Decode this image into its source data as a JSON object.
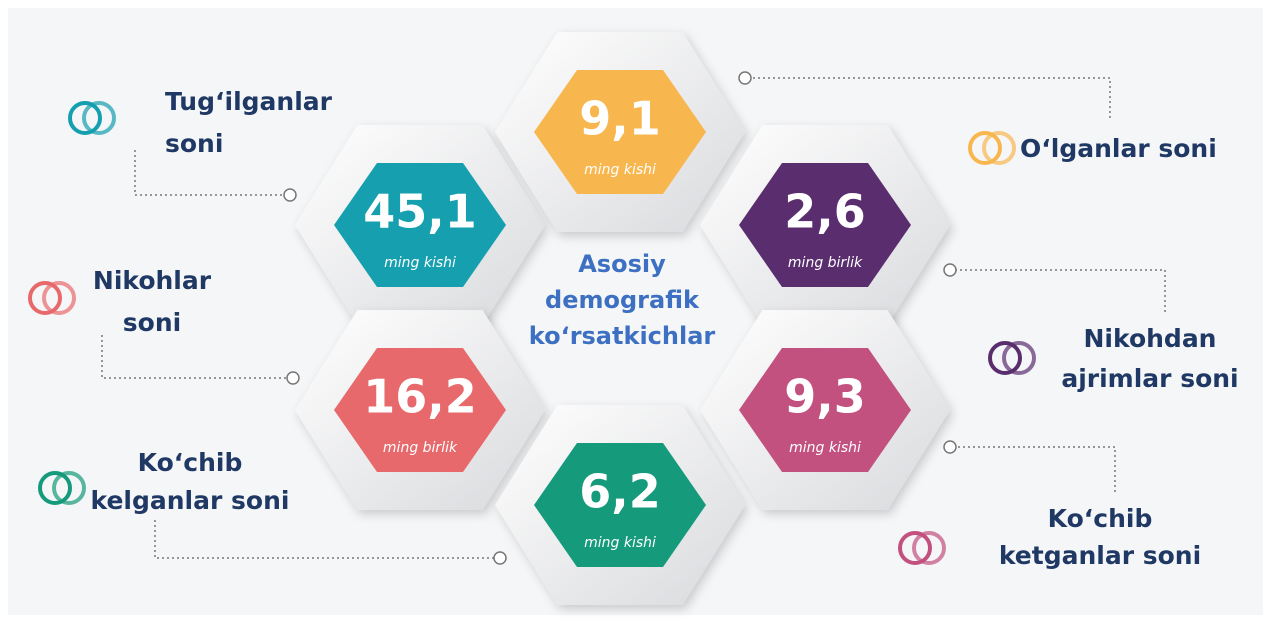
{
  "title": [
    "Asosiy",
    "demografik",
    "ko‘rsatkichlar"
  ],
  "items": [
    {
      "label": [
        "Tug‘ilganlar",
        "soni"
      ],
      "value": "45,1",
      "unit": "ming kishi",
      "color": "#169fae"
    },
    {
      "label": [
        "O‘lganlar soni"
      ],
      "value": "9,1",
      "unit": "ming kishi",
      "color": "#f8b64e"
    },
    {
      "label": [
        "Nikohlar",
        "soni"
      ],
      "value": "16,2",
      "unit": "ming birlik",
      "color": "#e8696c"
    },
    {
      "label": [
        "Nikohdan",
        "ajrimlar soni"
      ],
      "value": "2,6",
      "unit": "ming birlik",
      "color": "#5a2e6e"
    },
    {
      "label": [
        "Ko‘chib",
        "kelganlar soni"
      ],
      "value": "6,2",
      "unit": "ming kishi",
      "color": "#159a7b"
    },
    {
      "label": [
        "Ko‘chib",
        "ketganlar soni"
      ],
      "value": "9,3",
      "unit": "ming kishi",
      "color": "#c2517f"
    }
  ]
}
